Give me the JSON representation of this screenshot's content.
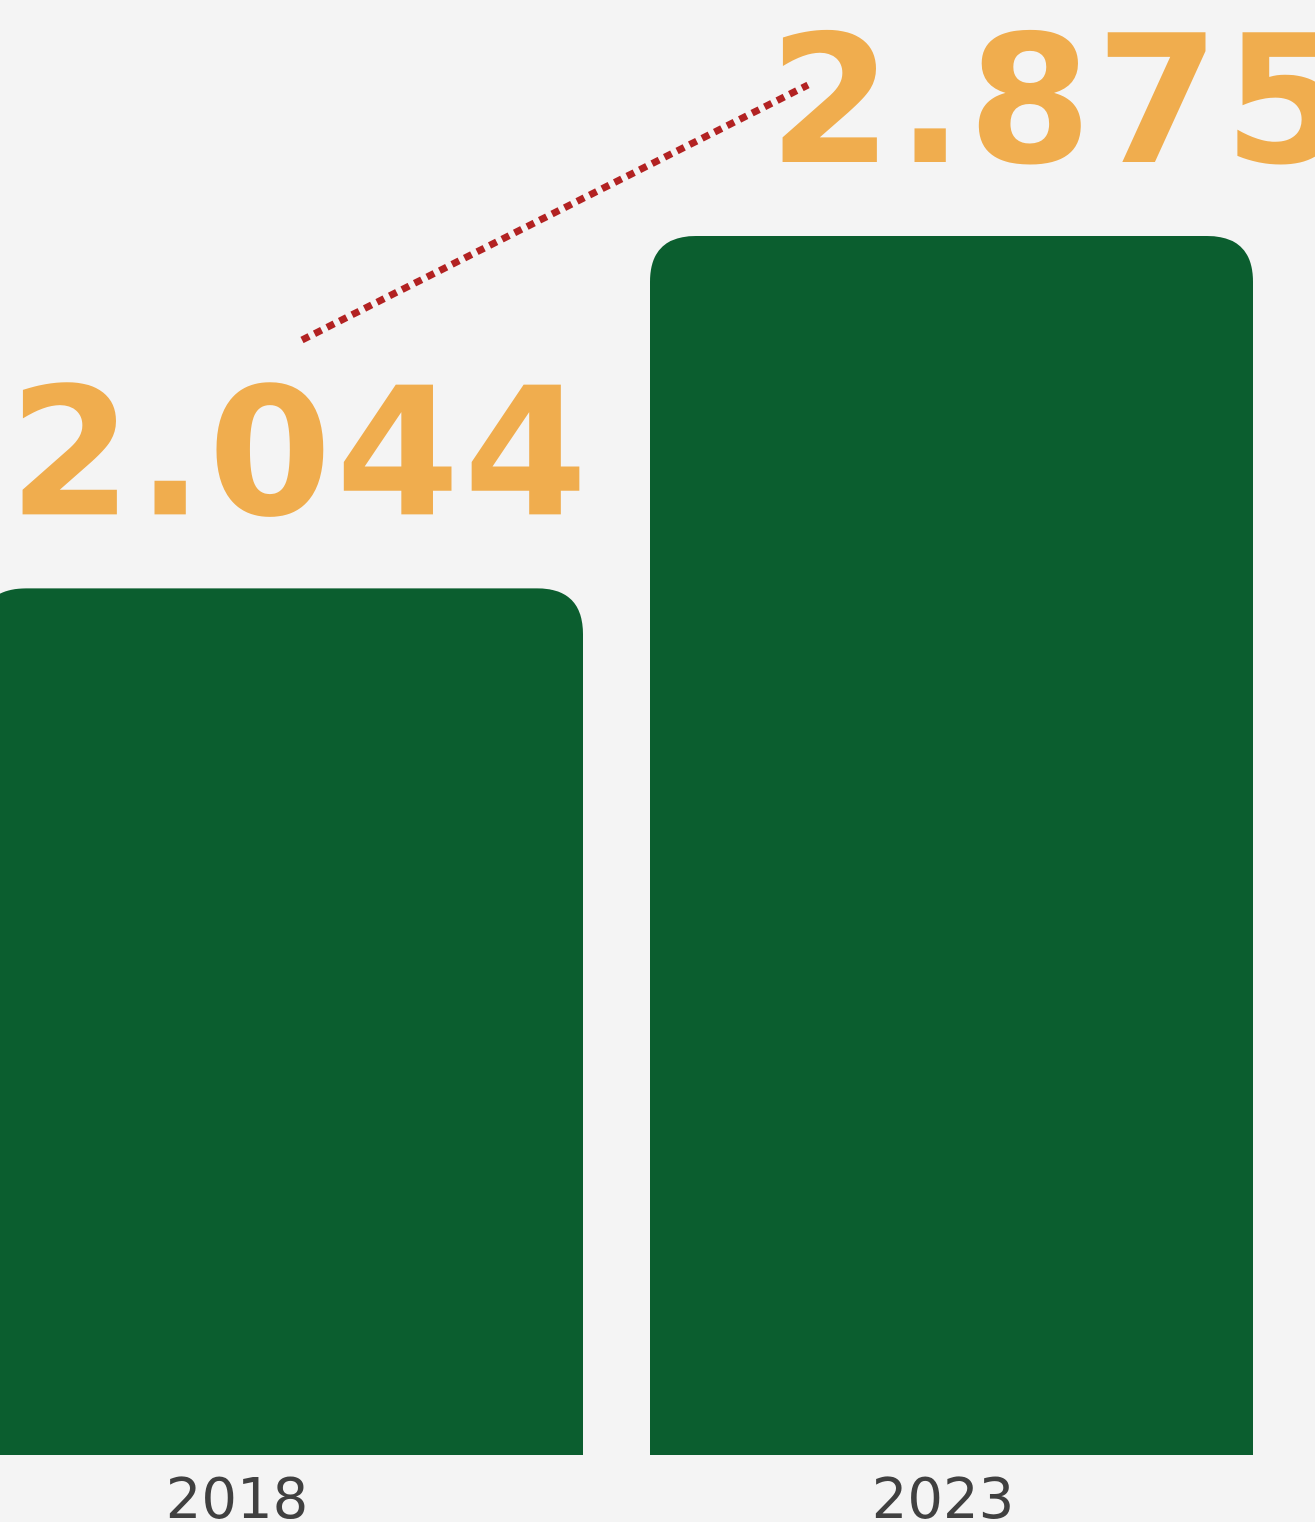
{
  "chart_data": {
    "type": "bar",
    "categories": [
      "2018",
      "2023"
    ],
    "values": [
      2.044,
      2.875
    ],
    "color": "#0b5e2f",
    "label_color": "#f0ad4e"
  }
}
